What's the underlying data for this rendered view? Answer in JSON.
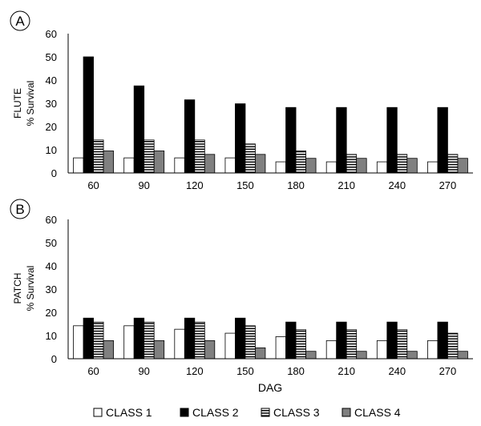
{
  "chart_data": [
    {
      "type": "bar",
      "panel_label": "A",
      "ylabel_line1": "FLUTE",
      "ylabel_line2": "% Survival",
      "xlabel": "",
      "categories": [
        "60",
        "90",
        "120",
        "150",
        "180",
        "210",
        "240",
        "270"
      ],
      "ylim": [
        0,
        60
      ],
      "yticks": [
        "0",
        "10",
        "20",
        "30",
        "40",
        "50",
        "60"
      ],
      "grid": false,
      "series": [
        {
          "name": "CLASS 1",
          "values": [
            6.5,
            6.5,
            6.5,
            6.5,
            4.8,
            4.8,
            4.8,
            4.8
          ]
        },
        {
          "name": "CLASS 2",
          "values": [
            50,
            37.5,
            31.5,
            29.8,
            28.2,
            28.2,
            28.2,
            28.2
          ]
        },
        {
          "name": "CLASS 3",
          "values": [
            14.2,
            14.2,
            14.2,
            12.5,
            9.5,
            8,
            8,
            8
          ]
        },
        {
          "name": "CLASS 4",
          "values": [
            9.5,
            9.5,
            8,
            8,
            6.3,
            6.3,
            6.3,
            6.3
          ]
        }
      ]
    },
    {
      "type": "bar",
      "panel_label": "B",
      "ylabel_line1": "PATCH",
      "ylabel_line2": "% Survival",
      "xlabel": "DAG",
      "categories": [
        "60",
        "90",
        "120",
        "150",
        "180",
        "210",
        "240",
        "270"
      ],
      "ylim": [
        0,
        60
      ],
      "yticks": [
        "0",
        "10",
        "20",
        "30",
        "40",
        "50",
        "60"
      ],
      "grid": false,
      "series": [
        {
          "name": "CLASS 1",
          "values": [
            14.2,
            14.2,
            12.7,
            11,
            9.5,
            7.8,
            7.8,
            7.8
          ]
        },
        {
          "name": "CLASS 2",
          "values": [
            17.5,
            17.5,
            17.5,
            17.5,
            15.8,
            15.8,
            15.8,
            15.8
          ]
        },
        {
          "name": "CLASS 3",
          "values": [
            15.8,
            15.8,
            15.8,
            14.2,
            12.5,
            12.5,
            12.5,
            11
          ]
        },
        {
          "name": "CLASS 4",
          "values": [
            7.8,
            7.8,
            7.8,
            4.7,
            3.2,
            3.2,
            3.2,
            3.2
          ]
        }
      ]
    }
  ],
  "legend": {
    "placement": "bottom",
    "items": [
      "CLASS 1",
      "CLASS 2",
      "CLASS 3",
      "CLASS 4"
    ]
  },
  "colors": {
    "class1_fill": "#ffffff",
    "class2_fill": "#000000",
    "class3_fill": "#ffffff",
    "class3_stripe": "#000000",
    "class4_fill": "#808080",
    "axis": "#000000"
  }
}
